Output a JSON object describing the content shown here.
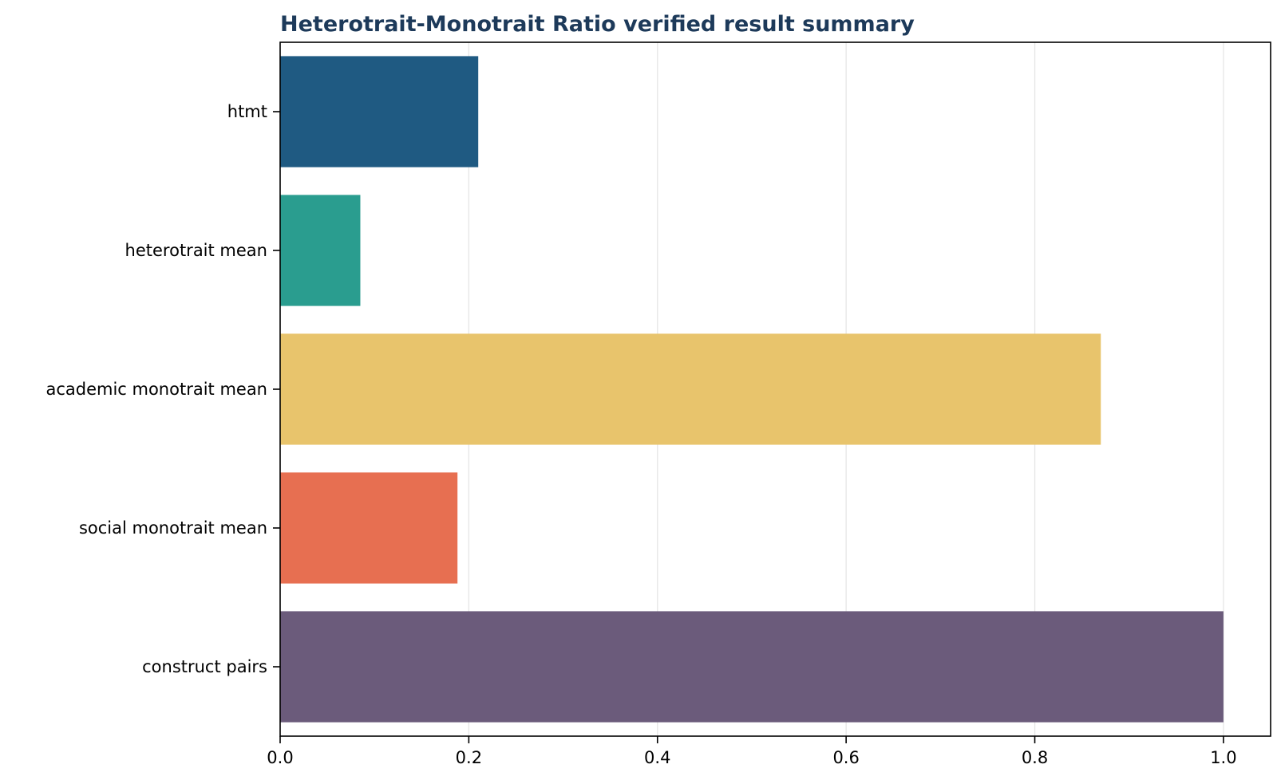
{
  "chart_data": {
    "type": "bar",
    "orientation": "horizontal",
    "title": "Heterotrait-Monotrait Ratio verified result summary",
    "xlabel": "",
    "ylabel": "",
    "categories": [
      "htmt",
      "heterotrait mean",
      "academic monotrait mean",
      "social monotrait mean",
      "construct pairs"
    ],
    "values": [
      0.21,
      0.085,
      0.87,
      0.188,
      1.0
    ],
    "bar_colors": [
      "#1f5a82",
      "#2a9d8f",
      "#e8c46c",
      "#e76f51",
      "#6b5b7b"
    ],
    "xlim": [
      0,
      1.05
    ],
    "xticks": [
      0.0,
      0.2,
      0.4,
      0.6,
      0.8,
      1.0
    ],
    "xtick_labels": [
      "0.0",
      "0.2",
      "0.4",
      "0.6",
      "0.8",
      "1.0"
    ],
    "grid": "x",
    "title_color": "#1d3a5a",
    "grid_color": "#e6e6e6"
  }
}
